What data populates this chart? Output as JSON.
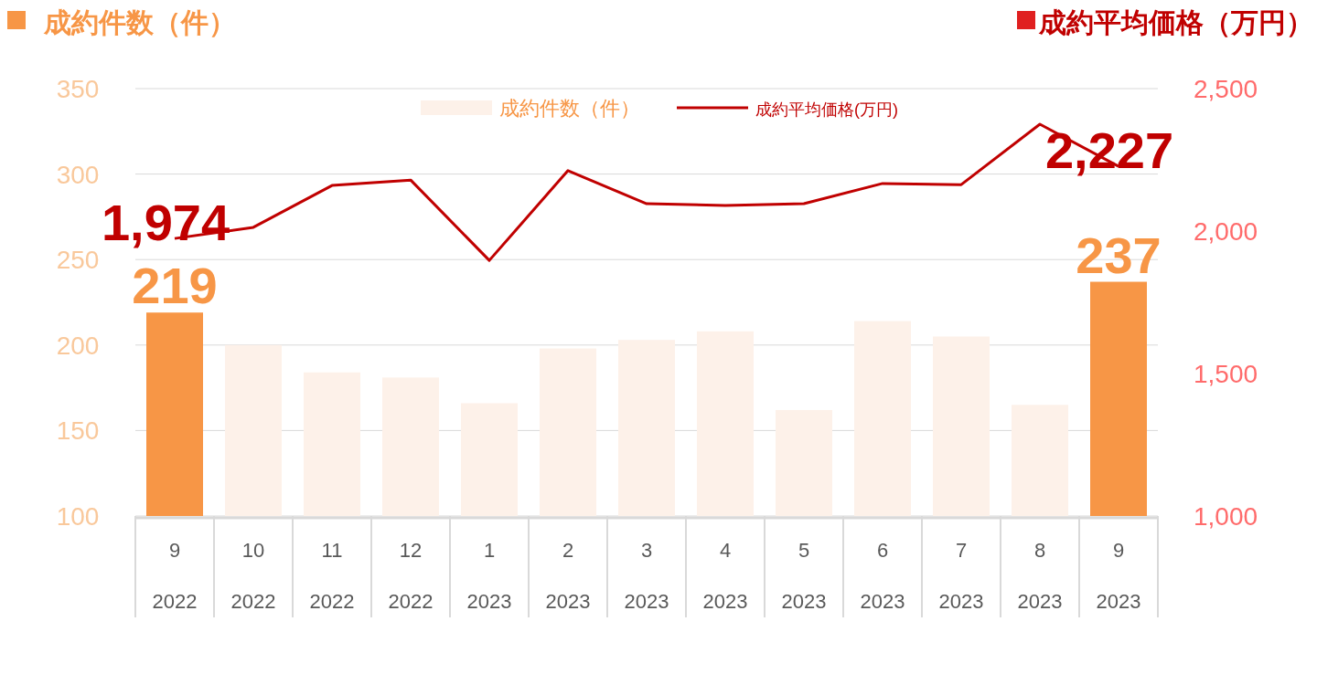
{
  "chart_data": {
    "type": "bar",
    "ylabel": "成約件数（件）",
    "y2label": "成約平均価格（万円）",
    "categories": [
      "9\n2022",
      "10\n2022",
      "11\n2022",
      "12\n2022",
      "1\n2023",
      "2\n2023",
      "3\n2023",
      "4\n2023",
      "5\n2023",
      "6\n2023",
      "7\n2023",
      "8\n2023",
      "9\n2023"
    ],
    "series": [
      {
        "name": "成約件数（件）",
        "color": "#fdf1e9",
        "colors": [
          "#f79646",
          "#fdf1e9",
          "#fdf1e9",
          "#fdf1e9",
          "#fdf1e9",
          "#fdf1e9",
          "#fdf1e9",
          "#fdf1e9",
          "#fdf1e9",
          "#fdf1e9",
          "#fdf1e9",
          "#fdf1e9",
          "#f79646"
        ],
        "values": [
          219,
          200,
          184,
          181,
          166,
          198,
          203,
          208,
          162,
          214,
          205,
          165,
          237
        ],
        "value_labels": [
          "219",
          null,
          null,
          null,
          null,
          null,
          null,
          null,
          null,
          null,
          null,
          null,
          "237"
        ]
      },
      {
        "name": "成約平均価格(万円)",
        "type": "line",
        "axis": "y2",
        "color": "#c00000",
        "values": [
          1974,
          2013,
          2160,
          2179,
          1897,
          2212,
          2096,
          2090,
          2096,
          2167,
          2163,
          2375,
          2227
        ],
        "value_labels": [
          "1,974",
          null,
          null,
          null,
          null,
          null,
          null,
          null,
          null,
          null,
          null,
          null,
          "2,227"
        ]
      }
    ],
    "ylim": [
      100,
      350
    ],
    "yticks": [
      100,
      150,
      200,
      250,
      300,
      350
    ],
    "y2lim": [
      1000,
      2500
    ],
    "y2ticks": [
      {
        "value": 1000,
        "label": "1,000"
      },
      {
        "value": 1500,
        "label": "1,500"
      },
      {
        "value": 2000,
        "label": "2,000"
      },
      {
        "value": 2500,
        "label": "2,500"
      }
    ],
    "grid": "y",
    "legend": "top"
  }
}
